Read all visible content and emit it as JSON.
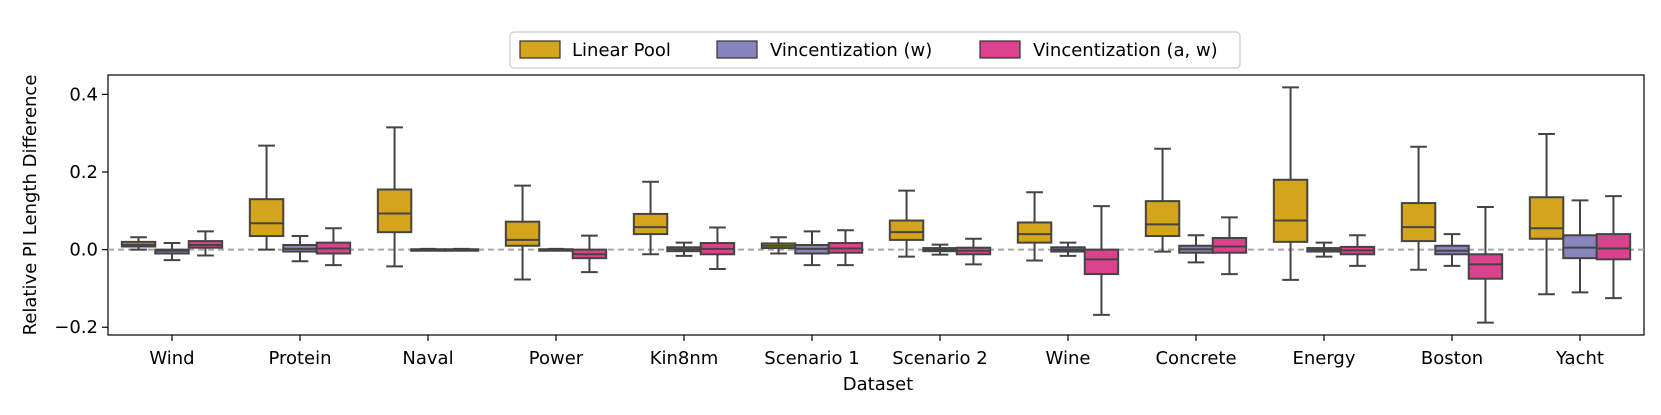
{
  "chart_data": {
    "type": "box",
    "title": "",
    "xlabel": "Dataset",
    "ylabel": "Relative PI Length Difference",
    "ylim": [
      -0.22,
      0.45
    ],
    "yticks": [
      -0.2,
      0.0,
      0.2,
      0.4
    ],
    "ytick_labels": [
      "−0.2",
      "0.0",
      "0.2",
      "0.4"
    ],
    "reference_line": 0.0,
    "legend_position": "top-center",
    "categories": [
      "Wind",
      "Protein",
      "Naval",
      "Power",
      "Kin8nm",
      "Scenario 1",
      "Scenario 2",
      "Wine",
      "Concrete",
      "Energy",
      "Boston",
      "Yacht"
    ],
    "series": [
      {
        "name": "Linear Pool",
        "color": "#D4A41C",
        "boxes": [
          {
            "whislo": 0.0,
            "q1": 0.008,
            "med": 0.013,
            "q3": 0.02,
            "whishi": 0.032
          },
          {
            "whislo": 0.0,
            "q1": 0.035,
            "med": 0.068,
            "q3": 0.13,
            "whishi": 0.268
          },
          {
            "whislo": -0.043,
            "q1": 0.045,
            "med": 0.093,
            "q3": 0.155,
            "whishi": 0.315
          },
          {
            "whislo": -0.077,
            "q1": 0.01,
            "med": 0.025,
            "q3": 0.072,
            "whishi": 0.165
          },
          {
            "whislo": -0.012,
            "q1": 0.04,
            "med": 0.058,
            "q3": 0.092,
            "whishi": 0.175
          },
          {
            "whislo": -0.01,
            "q1": 0.004,
            "med": 0.01,
            "q3": 0.016,
            "whishi": 0.032
          },
          {
            "whislo": -0.018,
            "q1": 0.025,
            "med": 0.045,
            "q3": 0.075,
            "whishi": 0.152
          },
          {
            "whislo": -0.028,
            "q1": 0.018,
            "med": 0.04,
            "q3": 0.07,
            "whishi": 0.148
          },
          {
            "whislo": -0.005,
            "q1": 0.035,
            "med": 0.065,
            "q3": 0.125,
            "whishi": 0.26
          },
          {
            "whislo": -0.078,
            "q1": 0.02,
            "med": 0.075,
            "q3": 0.18,
            "whishi": 0.418
          },
          {
            "whislo": -0.052,
            "q1": 0.022,
            "med": 0.058,
            "q3": 0.12,
            "whishi": 0.265
          },
          {
            "whislo": -0.115,
            "q1": 0.028,
            "med": 0.055,
            "q3": 0.135,
            "whishi": 0.298
          }
        ]
      },
      {
        "name": "Vincentization (w)",
        "color": "#8884BE",
        "boxes": [
          {
            "whislo": -0.027,
            "q1": -0.01,
            "med": -0.003,
            "q3": 0.0,
            "whishi": 0.017
          },
          {
            "whislo": -0.03,
            "q1": -0.005,
            "med": 0.002,
            "q3": 0.012,
            "whishi": 0.035
          },
          {
            "whislo": -0.002,
            "q1": -0.001,
            "med": 0.0,
            "q3": 0.001,
            "whishi": 0.002
          },
          {
            "whislo": -0.002,
            "q1": -0.001,
            "med": 0.0,
            "q3": 0.001,
            "whishi": 0.002
          },
          {
            "whislo": -0.016,
            "q1": -0.004,
            "med": 0.001,
            "q3": 0.006,
            "whishi": 0.018
          },
          {
            "whislo": -0.04,
            "q1": -0.01,
            "med": 0.002,
            "q3": 0.012,
            "whishi": 0.047
          },
          {
            "whislo": -0.013,
            "q1": -0.004,
            "med": 0.0,
            "q3": 0.004,
            "whishi": 0.013
          },
          {
            "whislo": -0.016,
            "q1": -0.005,
            "med": 0.0,
            "q3": 0.006,
            "whishi": 0.018
          },
          {
            "whislo": -0.033,
            "q1": -0.008,
            "med": 0.001,
            "q3": 0.01,
            "whishi": 0.037
          },
          {
            "whislo": -0.018,
            "q1": -0.005,
            "med": 0.0,
            "q3": 0.004,
            "whishi": 0.018
          },
          {
            "whislo": -0.042,
            "q1": -0.012,
            "med": -0.003,
            "q3": 0.01,
            "whishi": 0.04
          },
          {
            "whislo": -0.11,
            "q1": -0.022,
            "med": 0.005,
            "q3": 0.037,
            "whishi": 0.127
          }
        ]
      },
      {
        "name": "Vincentization (a, w)",
        "color": "#DC418D",
        "boxes": [
          {
            "whislo": -0.015,
            "q1": 0.005,
            "med": 0.012,
            "q3": 0.022,
            "whishi": 0.047
          },
          {
            "whislo": -0.04,
            "q1": -0.01,
            "med": 0.003,
            "q3": 0.018,
            "whishi": 0.055
          },
          {
            "whislo": -0.002,
            "q1": -0.001,
            "med": 0.0,
            "q3": 0.001,
            "whishi": 0.002
          },
          {
            "whislo": -0.058,
            "q1": -0.022,
            "med": -0.012,
            "q3": 0.0,
            "whishi": 0.036
          },
          {
            "whislo": -0.05,
            "q1": -0.012,
            "med": 0.002,
            "q3": 0.017,
            "whishi": 0.057
          },
          {
            "whislo": -0.04,
            "q1": -0.008,
            "med": 0.003,
            "q3": 0.017,
            "whishi": 0.05
          },
          {
            "whislo": -0.038,
            "q1": -0.012,
            "med": -0.003,
            "q3": 0.005,
            "whishi": 0.028
          },
          {
            "whislo": -0.168,
            "q1": -0.063,
            "med": -0.025,
            "q3": 0.0,
            "whishi": 0.112
          },
          {
            "whislo": -0.063,
            "q1": -0.008,
            "med": 0.008,
            "q3": 0.03,
            "whishi": 0.083
          },
          {
            "whislo": -0.042,
            "q1": -0.012,
            "med": -0.002,
            "q3": 0.007,
            "whishi": 0.037
          },
          {
            "whislo": -0.188,
            "q1": -0.075,
            "med": -0.038,
            "q3": -0.012,
            "whishi": 0.11
          },
          {
            "whislo": -0.125,
            "q1": -0.025,
            "med": 0.003,
            "q3": 0.04,
            "whishi": 0.138
          }
        ]
      }
    ]
  }
}
